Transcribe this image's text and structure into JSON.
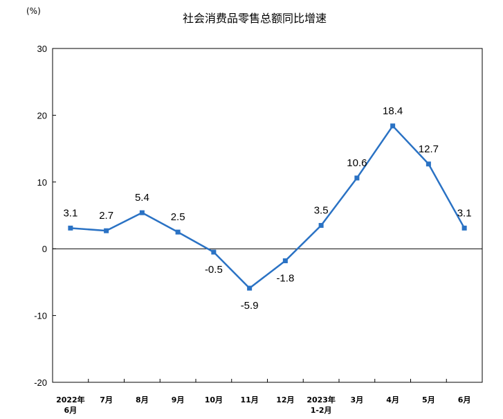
{
  "chart_data": {
    "type": "line",
    "title": "社会消费品零售总额同比增速",
    "unit": "(%)",
    "categories": [
      [
        "2022年",
        "6月"
      ],
      [
        "7月"
      ],
      [
        "8月"
      ],
      [
        "9月"
      ],
      [
        "10月"
      ],
      [
        "11月"
      ],
      [
        "12月"
      ],
      [
        "2023年",
        "1-2月"
      ],
      [
        "3月"
      ],
      [
        "4月"
      ],
      [
        "5月"
      ],
      [
        "6月"
      ]
    ],
    "values": [
      3.1,
      2.7,
      5.4,
      2.5,
      -0.5,
      -5.9,
      -1.8,
      3.5,
      10.6,
      18.4,
      12.7,
      3.1
    ],
    "ylim": [
      -20,
      30
    ],
    "yticks": [
      -20,
      -10,
      0,
      10,
      20,
      30
    ],
    "color": "#2a72c4",
    "grid": false
  }
}
